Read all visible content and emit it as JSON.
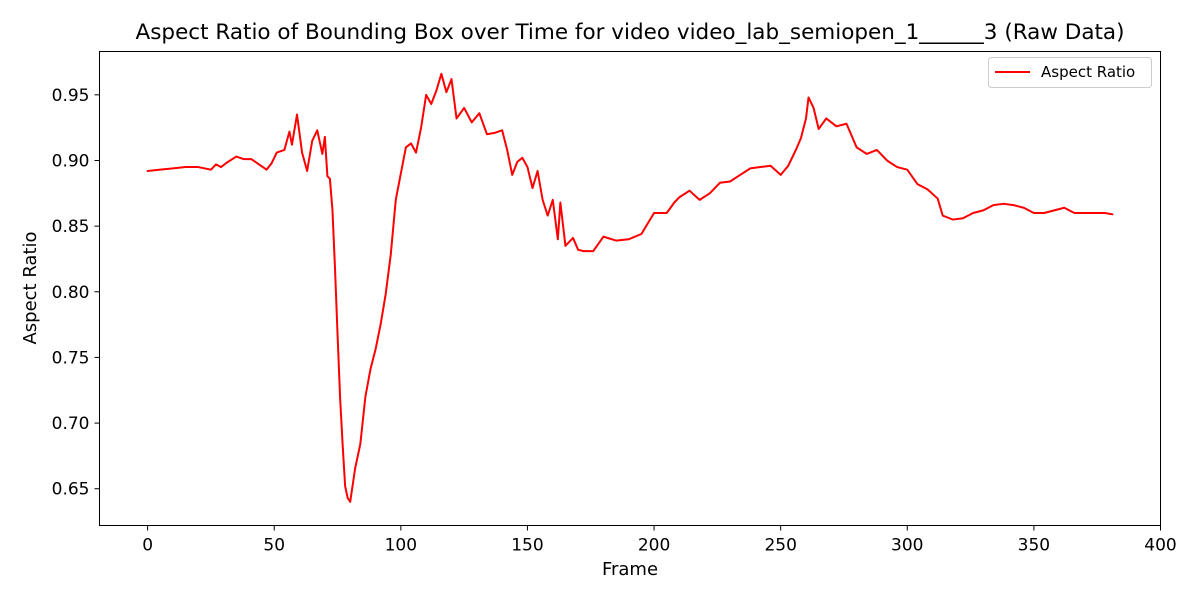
{
  "chart_data": {
    "type": "line",
    "title": "Aspect Ratio of Bounding Box over Time for video video_lab_semiopen_1______3 (Raw Data)",
    "xlabel": "Frame",
    "ylabel": "Aspect Ratio",
    "xlim": [
      -19,
      400
    ],
    "ylim": [
      0.622,
      0.983
    ],
    "xticks": [
      0,
      50,
      100,
      150,
      200,
      250,
      300,
      350,
      400
    ],
    "yticks": [
      0.65,
      0.7,
      0.75,
      0.8,
      0.85,
      0.9,
      0.95
    ],
    "xtick_labels": [
      "0",
      "50",
      "100",
      "150",
      "200",
      "250",
      "300",
      "350",
      "400"
    ],
    "ytick_labels": [
      "0.65",
      "0.70",
      "0.75",
      "0.80",
      "0.85",
      "0.90",
      "0.95"
    ],
    "grid": false,
    "legend": {
      "position": "top-right",
      "entries": [
        "Aspect Ratio"
      ]
    },
    "colors": {
      "series": "#ff0000",
      "axes": "#000000",
      "background": "#ffffff",
      "legend_border": "#cccccc"
    },
    "series": [
      {
        "name": "Aspect Ratio",
        "x": [
          0,
          5,
          10,
          15,
          20,
          25,
          27,
          29,
          31,
          35,
          38,
          41,
          44,
          47,
          49,
          51,
          54,
          56,
          57,
          59,
          61,
          63,
          65,
          67,
          69,
          70,
          71,
          72,
          73,
          74,
          75,
          76,
          77,
          78,
          79,
          80,
          82,
          84,
          86,
          88,
          90,
          92,
          94,
          96,
          98,
          100,
          102,
          104,
          106,
          108,
          110,
          112,
          114,
          116,
          118,
          120,
          122,
          125,
          128,
          131,
          134,
          137,
          140,
          142,
          144,
          146,
          148,
          150,
          152,
          154,
          156,
          158,
          160,
          162,
          163,
          165,
          168,
          170,
          172,
          176,
          180,
          185,
          190,
          195,
          200,
          205,
          208,
          210,
          214,
          218,
          222,
          226,
          230,
          234,
          238,
          242,
          246,
          250,
          253,
          256,
          258,
          260,
          261,
          263,
          265,
          268,
          272,
          276,
          280,
          284,
          288,
          292,
          296,
          300,
          304,
          308,
          312,
          314,
          318,
          322,
          326,
          330,
          334,
          338,
          342,
          346,
          350,
          354,
          358,
          362,
          366,
          370,
          374,
          378,
          381
        ],
        "y": [
          0.892,
          0.893,
          0.894,
          0.895,
          0.895,
          0.893,
          0.897,
          0.895,
          0.898,
          0.903,
          0.901,
          0.901,
          0.897,
          0.893,
          0.898,
          0.906,
          0.908,
          0.922,
          0.912,
          0.935,
          0.906,
          0.892,
          0.915,
          0.923,
          0.905,
          0.918,
          0.888,
          0.886,
          0.862,
          0.818,
          0.768,
          0.72,
          0.684,
          0.652,
          0.643,
          0.64,
          0.666,
          0.684,
          0.72,
          0.741,
          0.756,
          0.775,
          0.798,
          0.828,
          0.87,
          0.89,
          0.91,
          0.913,
          0.906,
          0.925,
          0.95,
          0.943,
          0.953,
          0.966,
          0.952,
          0.962,
          0.932,
          0.94,
          0.929,
          0.936,
          0.92,
          0.921,
          0.923,
          0.908,
          0.889,
          0.899,
          0.902,
          0.895,
          0.879,
          0.892,
          0.87,
          0.858,
          0.87,
          0.84,
          0.868,
          0.835,
          0.841,
          0.832,
          0.831,
          0.831,
          0.842,
          0.839,
          0.84,
          0.844,
          0.86,
          0.86,
          0.868,
          0.872,
          0.877,
          0.87,
          0.875,
          0.883,
          0.884,
          0.889,
          0.894,
          0.895,
          0.896,
          0.889,
          0.896,
          0.908,
          0.917,
          0.932,
          0.948,
          0.94,
          0.924,
          0.932,
          0.926,
          0.928,
          0.91,
          0.905,
          0.908,
          0.9,
          0.895,
          0.893,
          0.882,
          0.878,
          0.871,
          0.858,
          0.855,
          0.856,
          0.86,
          0.862,
          0.866,
          0.867,
          0.866,
          0.864,
          0.86,
          0.86,
          0.862,
          0.864,
          0.86,
          0.86,
          0.86,
          0.86,
          0.859
        ]
      }
    ]
  }
}
